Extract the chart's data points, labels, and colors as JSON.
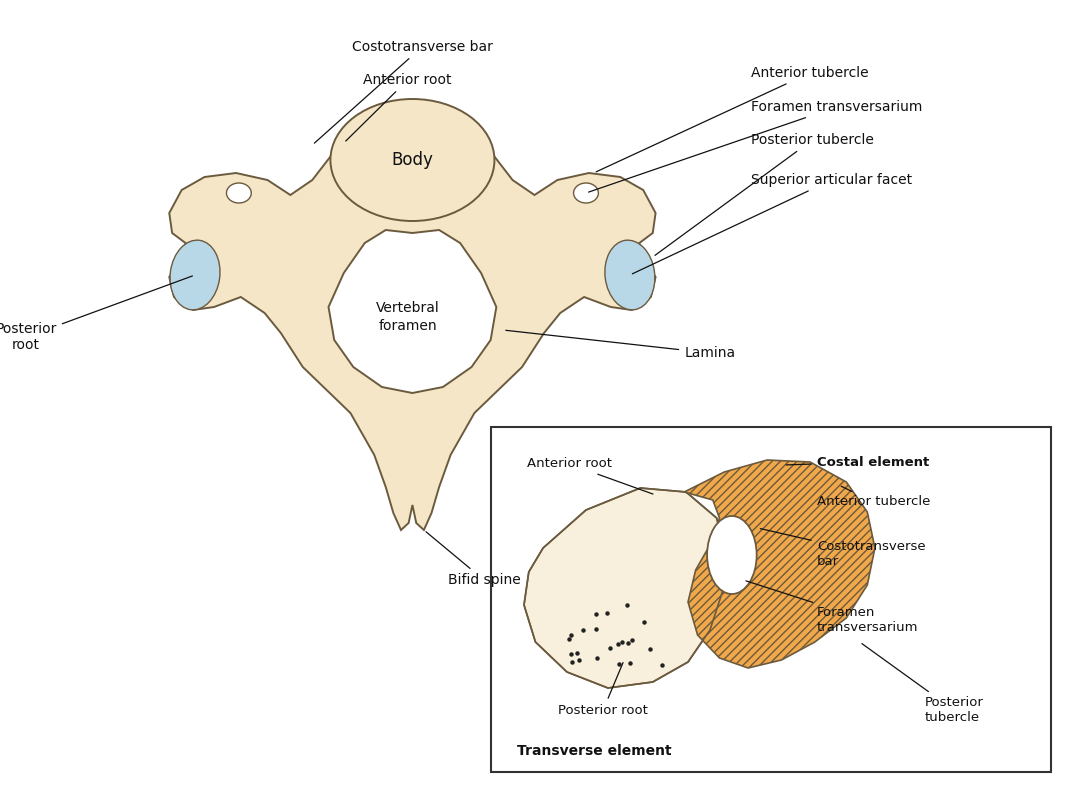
{
  "background_color": "#ffffff",
  "bone_fill": "#f5e6c8",
  "bone_edge": "#6b5a3e",
  "blue_fill": "#b8d8e8",
  "blue_edge": "#7aaabb",
  "orange_fill": "#f0a84a",
  "inset_box_color": "#333333",
  "dot_color": "#222222",
  "text_color": "#111111",
  "labels": {
    "costotransverse_bar": "Costotransverse bar",
    "anterior_root_top": "Anterior root",
    "anterior_tubercle": "Anterior tubercle",
    "foramen_transversarium": "Foramen transversarium",
    "posterior_tubercle": "Posterior tubercle",
    "superior_articular_facet": "Superior articular facet",
    "body": "Body",
    "vertebral_foramen": "Vertebral\nforamen",
    "lamina": "Lamina",
    "posterior_root": "Posterior\nroot",
    "bifid_spine": "Bifid spine",
    "inset_anterior_root": "Anterior root",
    "inset_costal_element": "Costal element",
    "inset_anterior_tubercle": "Anterior tubercle",
    "inset_costotransverse_bar": "Costotransverse\nbar",
    "inset_foramen_transversarium": "Foramen\ntransversarium",
    "inset_posterior_root": "Posterior root",
    "inset_transverse_element": "Transverse element",
    "inset_posterior_tubercle": "Posterior\ntubercle"
  }
}
